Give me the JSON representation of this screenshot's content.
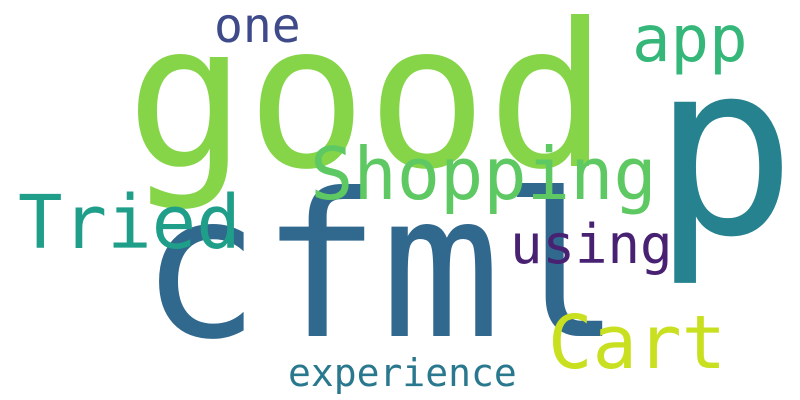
{
  "words": [
    {
      "id": "good",
      "text": "good",
      "color": "#86d549"
    },
    {
      "id": "p",
      "text": "p",
      "color": "#26828e"
    },
    {
      "id": "cfml",
      "text": "cfml",
      "color": "#31688e"
    },
    {
      "id": "shopping",
      "text": "Shopping",
      "color": "#5ec962"
    },
    {
      "id": "tried",
      "text": "Tried",
      "color": "#1f9e89"
    },
    {
      "id": "cart",
      "text": "Cart",
      "color": "#c8e020"
    },
    {
      "id": "app",
      "text": "app",
      "color": "#35b779"
    },
    {
      "id": "using",
      "text": "using",
      "color": "#482173"
    },
    {
      "id": "one",
      "text": "one",
      "color": "#3e4a89"
    },
    {
      "id": "experience",
      "text": "experience",
      "color": "#2a788e"
    }
  ]
}
